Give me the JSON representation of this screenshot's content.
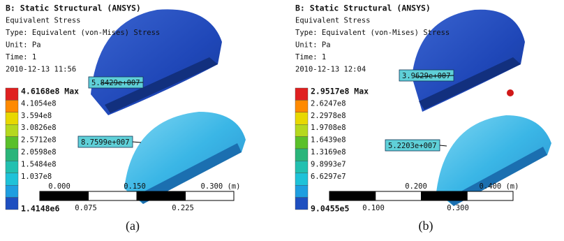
{
  "panels": [
    {
      "header": {
        "title": "B: Static Structural (ANSYS)",
        "result": "Equivalent Stress",
        "type": "Type: Equivalent (von-Mises) Stress",
        "unit": "Unit: Pa",
        "time": "Time: 1",
        "date": "2010-12-13 11:56"
      },
      "legend": [
        "4.6168e8 Max",
        "4.1054e8",
        "3.594e8",
        "3.0826e8",
        "2.5712e8",
        "2.0598e8",
        "1.5484e8",
        "1.037e8",
        "1.4148e6"
      ],
      "scale_top": [
        "0.000",
        "0.150",
        "0.300 (m)"
      ],
      "scale_bottom": [
        "0.075",
        "0.225"
      ],
      "probes": [
        "5.8429e+007",
        "8.7599e+007"
      ],
      "caption": "(a)"
    },
    {
      "header": {
        "title": "B: Static Structural (ANSYS)",
        "result": "Equivalent Stress",
        "type": "Type: Equivalent (von-Mises) Stress",
        "unit": "Unit: Pa",
        "time": "Time: 1",
        "date": "2010-12-13 12:04"
      },
      "legend": [
        "2.9517e8 Max",
        "2.6247e8",
        "2.2978e8",
        "1.9708e8",
        "1.6439e8",
        "1.3169e8",
        "9.8993e7",
        "6.6297e7",
        "9.0455e5"
      ],
      "scale_top": [
        "0.200",
        "0.400 (m)"
      ],
      "scale_bottom": [
        "0.100",
        "0.300"
      ],
      "probes": [
        "3.9629e+007",
        "5.2203e+007"
      ],
      "caption": "(b)"
    }
  ]
}
